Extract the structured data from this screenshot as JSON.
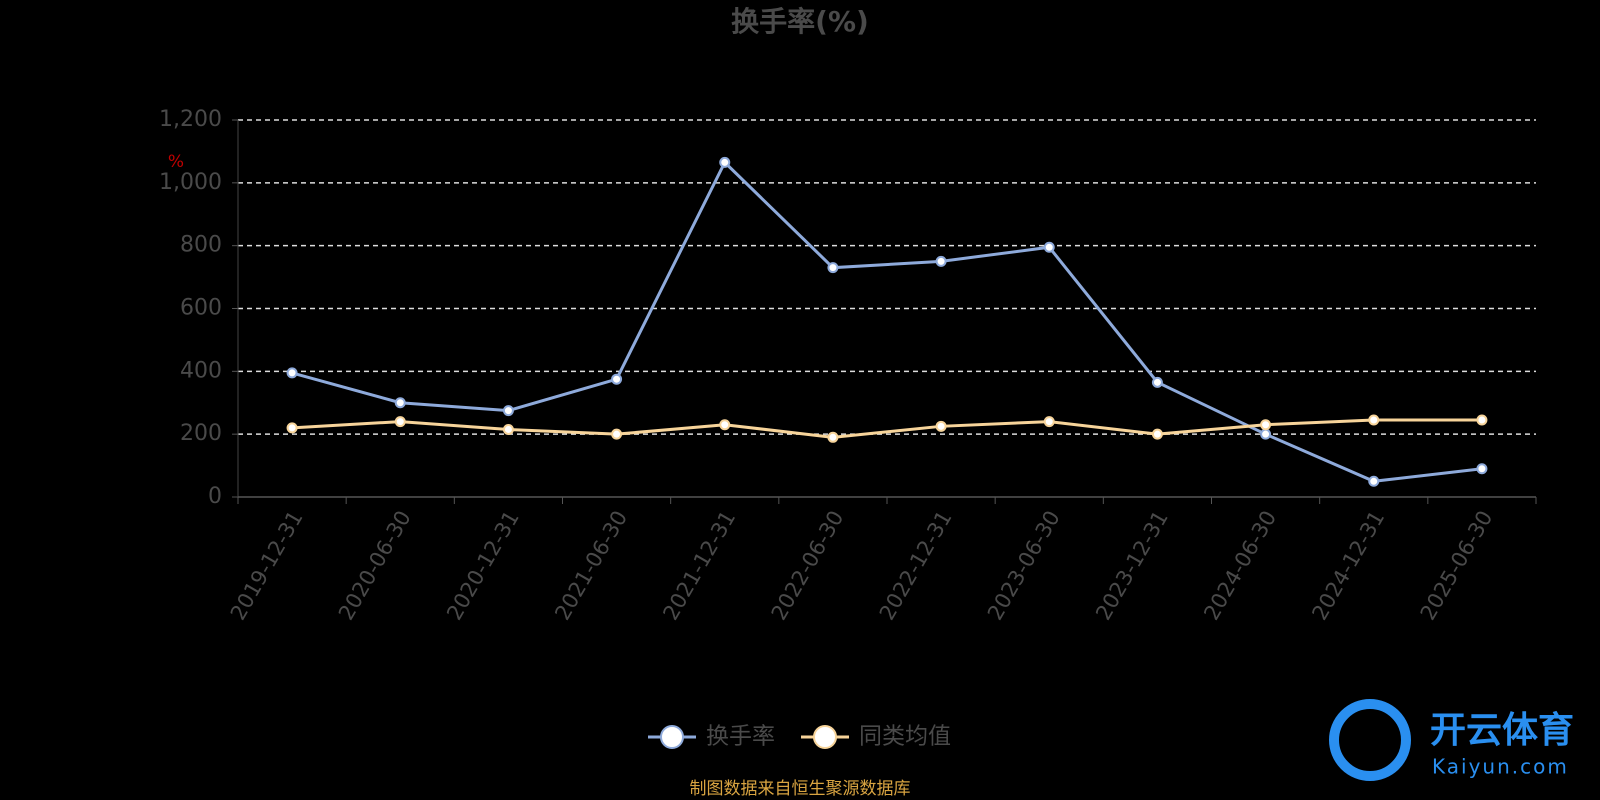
{
  "chart_data": {
    "type": "line",
    "title": "换手率(%)",
    "y_label": "%",
    "categories": [
      "2019-12-31",
      "2020-06-30",
      "2020-12-31",
      "2021-06-30",
      "2021-12-31",
      "2022-06-30",
      "2022-12-31",
      "2023-06-30",
      "2023-12-31",
      "2024-06-30",
      "2024-12-31",
      "2025-06-30"
    ],
    "series": [
      {
        "name": "换手率",
        "color": "#8eaadb",
        "values": [
          395,
          300,
          275,
          375,
          1065,
          730,
          750,
          795,
          365,
          200,
          50,
          90
        ]
      },
      {
        "name": "同类均值",
        "color": "#f7d49a",
        "values": [
          220,
          240,
          215,
          200,
          230,
          190,
          225,
          240,
          200,
          230,
          245,
          245
        ]
      }
    ],
    "ylim": [
      0,
      1200
    ],
    "yticks": [
      0,
      200,
      400,
      600,
      800,
      {
        "value": 1000,
        "label": "1,000"
      },
      {
        "value": 1200,
        "label": "1,200"
      }
    ],
    "grid": true,
    "source": "制图数据来自恒生聚源数据库",
    "watermark": {
      "brand": "开云体育",
      "site": "Kaiyun.com"
    }
  }
}
